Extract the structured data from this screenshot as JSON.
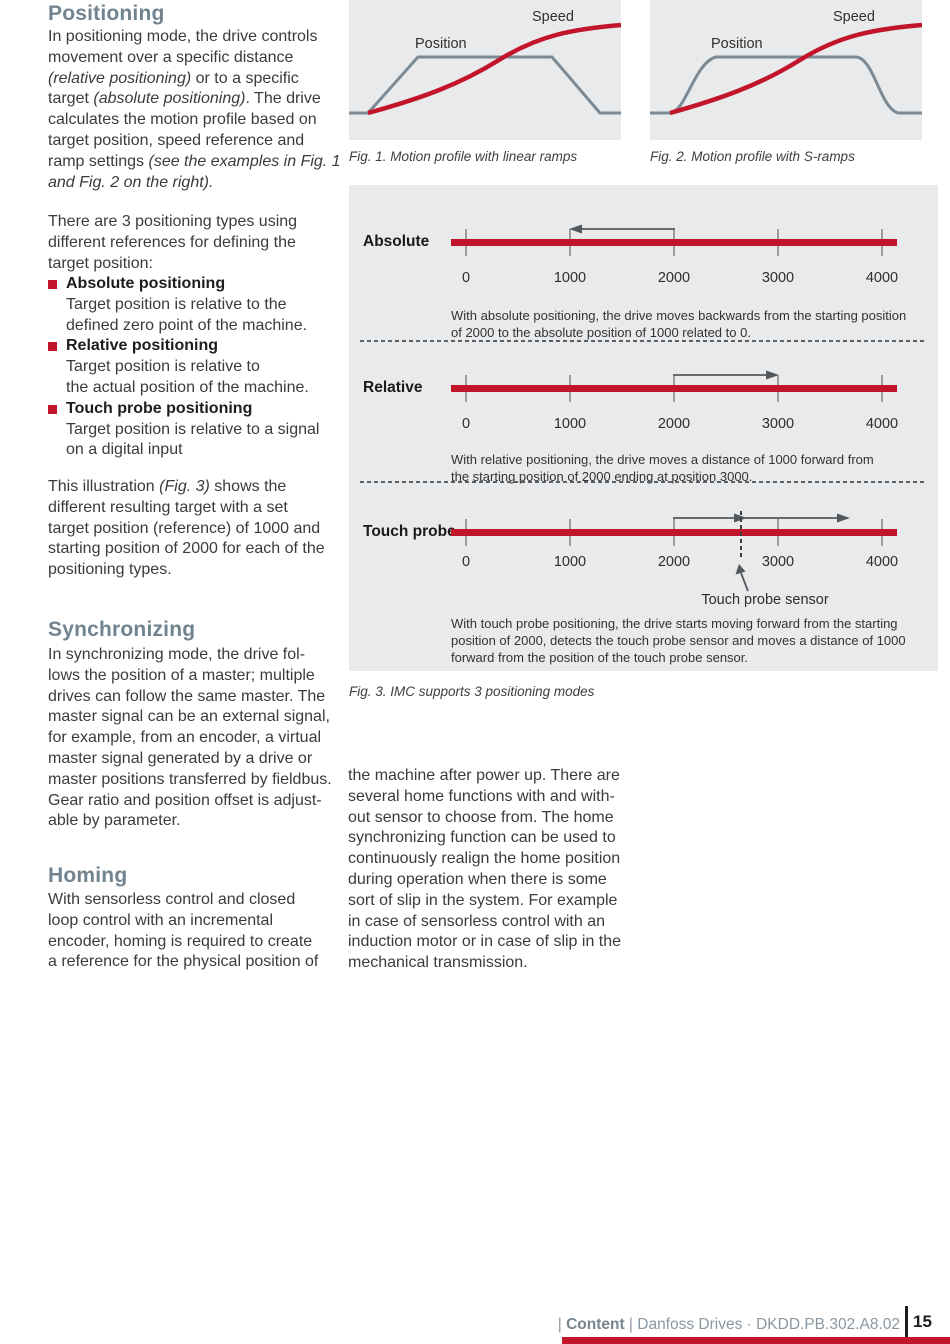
{
  "colors": {
    "accent_red": "#c2152b",
    "heading_slate": "#71838f",
    "figure_background": "#e8eaec",
    "curve_gray": "#7b8a94"
  },
  "left_column": {
    "heading_positioning": "Positioning",
    "p1_segments": [
      {
        "t": "In positioning mode, the drive controls\nmovement over a specific distance\n",
        "i": false
      },
      {
        "t": "(relative positioning)",
        "i": true
      },
      {
        "t": " or to a specific\ntarget ",
        "i": false
      },
      {
        "t": "(absolute positioning)",
        "i": true
      },
      {
        "t": ". The drive\ncalculates the motion profile based on\ntarget position, speed reference and\nramp settings ",
        "i": false
      },
      {
        "t": "(see the examples in Fig. 1\nand Fig. 2 on the right).",
        "i": true
      }
    ],
    "p2": "There are 3 positioning types using\ndifferent references for defining the\ntarget position:",
    "bullets": [
      {
        "title": "Absolute positioning",
        "desc": "Target position is relative to the\ndefined zero point of the machine."
      },
      {
        "title": "Relative positioning",
        "desc": "Target position is relative to\nthe actual position of the machine."
      },
      {
        "title": "Touch probe positioning",
        "desc": "Target position is relative to a signal\non a digital input"
      }
    ],
    "p3_segments": [
      {
        "t": "This illustration ",
        "i": false
      },
      {
        "t": "(Fig. 3)",
        "i": true
      },
      {
        "t": " shows the\ndifferent resulting target with a set\ntarget position (reference) of 1000 and\nstarting position of 2000 for each of the\npositioning types.",
        "i": false
      }
    ],
    "heading_synchronizing": "Synchronizing",
    "p4": "In synchronizing mode, the drive fol-\nlows the position of a master; multiple\ndrives can follow the same master. The\nmaster signal can be an external signal,\nfor example, from an encoder, a virtual\nmaster signal generated by a drive or\nmaster positions transferred by fieldbus.\nGear ratio and position offset is adjust-\nable by parameter.",
    "heading_homing": "Homing",
    "p5": "With sensorless control and closed\nloop control with an incremental\nencoder, homing is required to create\na reference for the physical position of"
  },
  "middle_column": {
    "p6": "the machine after power up. There are\nseveral home functions with and with-\nout sensor to choose from. The home\nsynchronizing function can be used to\ncontinuously realign the home position\nduring operation when there is some\nsort of slip in the system. For example\nin case of sensorless control with an\ninduction motor or in case of slip in the\nmechanical transmission."
  },
  "figures": {
    "fig1": {
      "caption": "Fig. 1. Motion profile with linear ramps",
      "position_label": "Position",
      "speed_label": "Speed",
      "type": "line",
      "curves": [
        {
          "name": "Position",
          "shape": "trapezoid with linear ramps",
          "color": "#7b8a94"
        },
        {
          "name": "Speed",
          "shape": "s-curve rising to saturation",
          "color": "#c2152b"
        }
      ]
    },
    "fig2": {
      "caption": "Fig. 2. Motion profile with S-ramps",
      "position_label": "Position",
      "speed_label": "Speed",
      "type": "line",
      "curves": [
        {
          "name": "Position",
          "shape": "trapezoid with s-shaped ramps",
          "color": "#7b8a94"
        },
        {
          "name": "Speed",
          "shape": "s-curve rising to saturation",
          "color": "#c2152b"
        }
      ]
    },
    "fig3": {
      "caption": "Fig. 3. IMC supports 3 positioning modes",
      "axis_range": [
        0,
        4000
      ],
      "ticks": [
        "0",
        "1000",
        "2000",
        "3000",
        "4000"
      ],
      "rows": [
        {
          "label": "Absolute",
          "movement": {
            "from": 2000,
            "to": 1000,
            "direction": "backward"
          },
          "desc": "With absolute positioning, the drive moves backwards from the starting position\nof 2000 to the absolute position of 1000 related to 0."
        },
        {
          "label": "Relative",
          "movement": {
            "from": 2000,
            "to": 3000,
            "direction": "forward"
          },
          "desc": "With relative positioning, the drive moves a distance of 1000 forward from\nthe starting position of 2000 ending at position 3000."
        },
        {
          "label": "Touch probe",
          "movements": [
            {
              "from": 2000,
              "to": 2650
            },
            {
              "from": 2650,
              "to": 3650
            }
          ],
          "sensor_position_approx": 2650,
          "sensor_label": "Touch probe sensor",
          "desc": "With touch probe positioning, the drive starts moving forward from the starting\nposition of 2000, detects the touch probe sensor and moves a distance of 1000\nforward from the position of the touch probe sensor."
        }
      ]
    }
  },
  "footer": {
    "sep1": "| ",
    "content_label": "Content",
    "sep2": " | ",
    "publisher": "Danfoss Drives · DKDD.PB.302.A8.02",
    "page_number": "15"
  }
}
